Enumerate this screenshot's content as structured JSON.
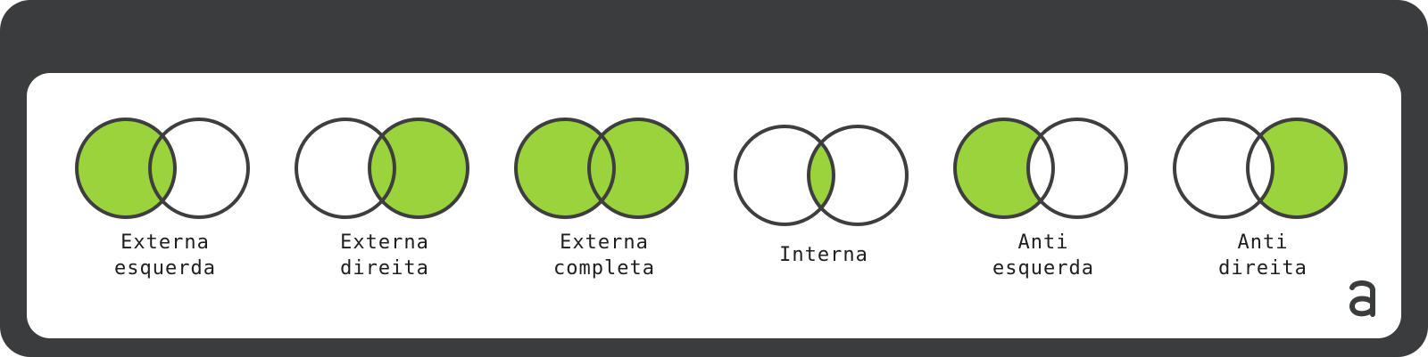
{
  "colors": {
    "frame": "#3b3c3e",
    "fill": "#9bd33c",
    "stroke": "#3e3e3e",
    "panel": "#ffffff"
  },
  "joins": [
    {
      "line1": "Externa",
      "line2": "esquerda",
      "highlight": "left"
    },
    {
      "line1": "Externa",
      "line2": "direita",
      "highlight": "right"
    },
    {
      "line1": "Externa",
      "line2": "completa",
      "highlight": "both"
    },
    {
      "line1": "Interna",
      "line2": "",
      "highlight": "intersection"
    },
    {
      "line1": "Anti",
      "line2": "esquerda",
      "highlight": "left-only"
    },
    {
      "line1": "Anti",
      "line2": "direita",
      "highlight": "right-only"
    }
  ],
  "logo": {
    "icon": "brand-a-logo"
  }
}
